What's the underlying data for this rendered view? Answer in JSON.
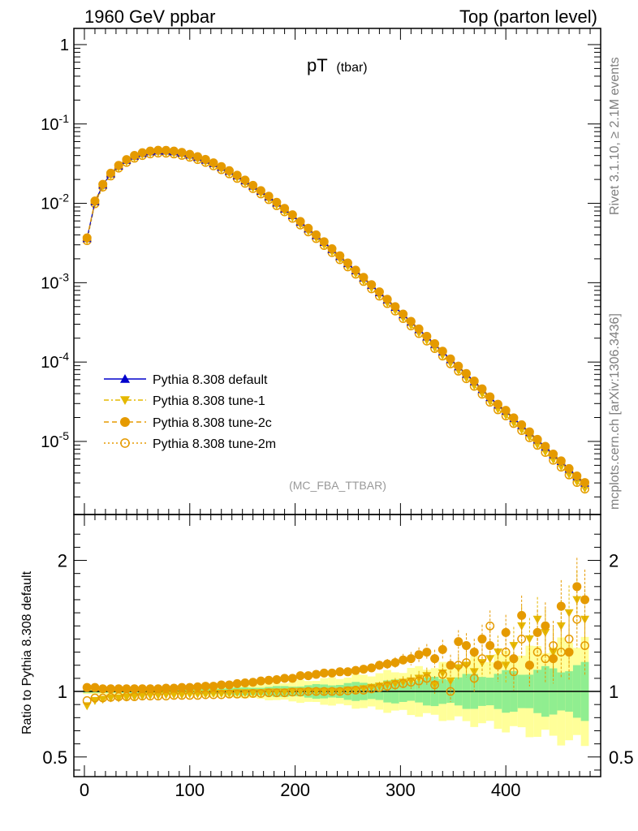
{
  "header": {
    "left": "1960 GeV ppbar",
    "right": "Top (parton level)"
  },
  "side_labels": {
    "rivet": "Rivet 3.1.10, ≥ 2.1M events",
    "mcplots": "mcplots.cern.ch [arXiv:1306.3436]"
  },
  "chart_data": [
    {
      "type": "line",
      "title": "pT",
      "title_sub": "(tbar)",
      "analysis_label": "(MC_FBA_TTBAR)",
      "xlabel": "",
      "ylabel": "",
      "xlim": [
        -10,
        490
      ],
      "ylim": [
        1.2e-06,
        1.6
      ],
      "yscale": "log",
      "ytick_labels": [
        "1",
        "10^-1",
        "10^-2",
        "10^-3",
        "10^-4",
        "10^-5"
      ],
      "xticks": [
        0,
        100,
        200,
        300,
        400
      ],
      "legend_position": "bottom-left",
      "series": [
        {
          "name": "Pythia 8.308 default",
          "color": "#0000cc",
          "marker": "triangle-up",
          "line": "solid",
          "x": [
            2.5,
            10,
            17.5,
            25,
            32.5,
            40,
            47.5,
            55,
            62.5,
            70,
            77.5,
            85,
            92.5,
            100,
            107.5,
            115,
            122.5,
            130,
            137.5,
            145,
            152.5,
            160,
            167.5,
            175,
            182.5,
            190,
            197.5,
            205,
            212.5,
            220,
            227.5,
            235,
            242.5,
            250,
            257.5,
            265,
            272.5,
            280,
            287.5,
            295,
            302.5,
            310,
            317.5,
            325,
            332.5,
            340,
            347.5,
            355,
            362.5,
            370,
            377.5,
            385,
            392.5,
            400,
            407.5,
            415,
            422.5,
            430,
            437.5,
            445,
            452.5,
            460,
            467.5,
            475
          ],
          "y": [
            0.0036,
            0.0105,
            0.017,
            0.0235,
            0.0295,
            0.0348,
            0.0393,
            0.0425,
            0.0445,
            0.0455,
            0.0453,
            0.0443,
            0.0425,
            0.0402,
            0.0375,
            0.0345,
            0.0312,
            0.0279,
            0.0247,
            0.0216,
            0.0187,
            0.016,
            0.0137,
            0.0116,
            0.0097,
            0.0081,
            0.0067,
            0.0055,
            0.0045,
            0.0037,
            0.00302,
            0.00245,
            0.00199,
            0.00161,
            0.0013,
            0.00105,
            0.000846,
            0.000682,
            0.000548,
            0.00044,
            0.000353,
            0.000284,
            0.000227,
            0.000182,
            0.000146,
            0.000117,
            9.3e-05,
            7.5e-05,
            6e-05,
            4.8e-05,
            3.8e-05,
            3e-05,
            2.4e-05,
            2e-05,
            1.6e-05,
            1.3e-05,
            1.05e-05,
            8.4e-06,
            6.8e-06,
            5.4e-06,
            4.4e-06,
            3.5e-06,
            2.8e-06,
            2.3e-06
          ]
        },
        {
          "name": "Pythia 8.308 tune-1",
          "color": "#e5b800",
          "marker": "triangle-down",
          "line": "dash-dot",
          "ratio_offset": -0.04
        },
        {
          "name": "Pythia 8.308 tune-2c",
          "color": "#e59a00",
          "marker": "circle-filled",
          "line": "dashed",
          "ratio_offset": 0.02
        },
        {
          "name": "Pythia 8.308 tune-2m",
          "color": "#e59a00",
          "marker": "circle-open",
          "line": "dotted",
          "ratio_offset": -0.06
        }
      ]
    },
    {
      "type": "line",
      "title": "",
      "xlabel": "",
      "ylabel": "Ratio to Pythia 8.308 default",
      "xlim": [
        -10,
        490
      ],
      "ylim": [
        0.35,
        2.35
      ],
      "yticks": [
        0.5,
        1,
        2
      ],
      "ytick_labels": [
        "0.5",
        "1",
        "2"
      ],
      "xticks": [
        0,
        100,
        200,
        300,
        400
      ],
      "xtick_labels": [
        "0",
        "100",
        "200",
        "300",
        "400"
      ],
      "series": [
        {
          "name": "tune-1",
          "color": "#e5b800",
          "values": [
            0.89,
            0.93,
            0.94,
            0.95,
            0.95,
            0.955,
            0.96,
            0.965,
            0.97,
            0.97,
            0.975,
            0.975,
            0.975,
            0.98,
            0.98,
            0.98,
            0.985,
            0.985,
            0.985,
            0.99,
            0.99,
            0.99,
            0.99,
            0.995,
            0.995,
            0.995,
            1.0,
            1.0,
            1.0,
            1.0,
            1.0,
            1.0,
            1.0,
            1.01,
            1.01,
            1.02,
            1.03,
            1.04,
            1.05,
            1.06,
            1.07,
            1.08,
            1.1,
            1.12,
            1.05,
            1.14,
            1.08,
            1.18,
            1.2,
            1.15,
            1.22,
            1.25,
            1.3,
            1.2,
            1.35,
            1.5,
            1.4,
            1.55,
            1.45,
            1.3,
            1.5,
            1.6,
            1.7,
            1.55
          ]
        },
        {
          "name": "tune-2c",
          "color": "#e59a00",
          "values": [
            1.03,
            1.03,
            1.02,
            1.02,
            1.02,
            1.02,
            1.02,
            1.02,
            1.02,
            1.02,
            1.025,
            1.025,
            1.03,
            1.03,
            1.035,
            1.04,
            1.04,
            1.05,
            1.05,
            1.06,
            1.065,
            1.07,
            1.08,
            1.085,
            1.09,
            1.1,
            1.1,
            1.12,
            1.12,
            1.13,
            1.14,
            1.14,
            1.15,
            1.15,
            1.16,
            1.17,
            1.18,
            1.2,
            1.21,
            1.22,
            1.24,
            1.25,
            1.28,
            1.3,
            1.25,
            1.32,
            1.2,
            1.38,
            1.35,
            1.3,
            1.4,
            1.35,
            1.2,
            1.45,
            1.25,
            1.58,
            1.2,
            1.45,
            1.5,
            1.25,
            1.65,
            1.3,
            1.8,
            1.7
          ]
        },
        {
          "name": "tune-2m",
          "color": "#e59a00",
          "values": [
            0.93,
            0.95,
            0.95,
            0.955,
            0.96,
            0.96,
            0.96,
            0.965,
            0.965,
            0.965,
            0.965,
            0.97,
            0.97,
            0.97,
            0.97,
            0.975,
            0.975,
            0.975,
            0.98,
            0.98,
            0.98,
            0.985,
            0.985,
            0.99,
            0.99,
            0.99,
            0.995,
            0.995,
            1.0,
            1.0,
            1.0,
            1.0,
            1.0,
            1.005,
            1.01,
            1.01,
            1.02,
            1.03,
            1.04,
            1.05,
            1.06,
            1.07,
            1.08,
            1.1,
            1.05,
            1.13,
            1.0,
            1.2,
            1.22,
            1.1,
            1.25,
            1.5,
            1.2,
            1.3,
            1.15,
            1.4,
            1.2,
            1.3,
            1.25,
            1.35,
            1.3,
            1.4,
            1.55,
            1.35
          ]
        }
      ],
      "bands": {
        "yellow": "#ffff99",
        "green": "#90ee90"
      }
    }
  ]
}
